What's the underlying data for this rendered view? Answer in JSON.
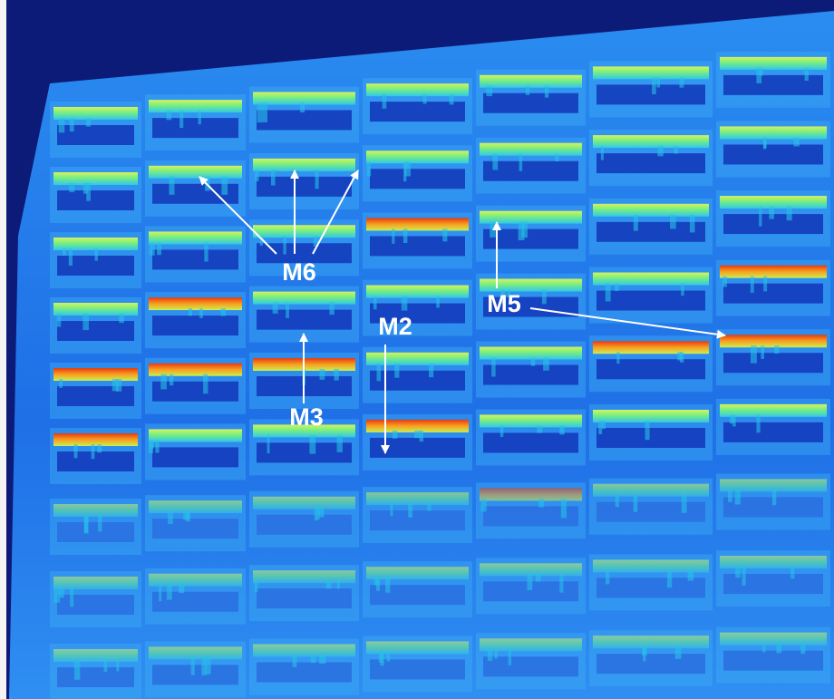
{
  "annotations": [
    "M6",
    "M5",
    "M2",
    "M3"
  ]
}
